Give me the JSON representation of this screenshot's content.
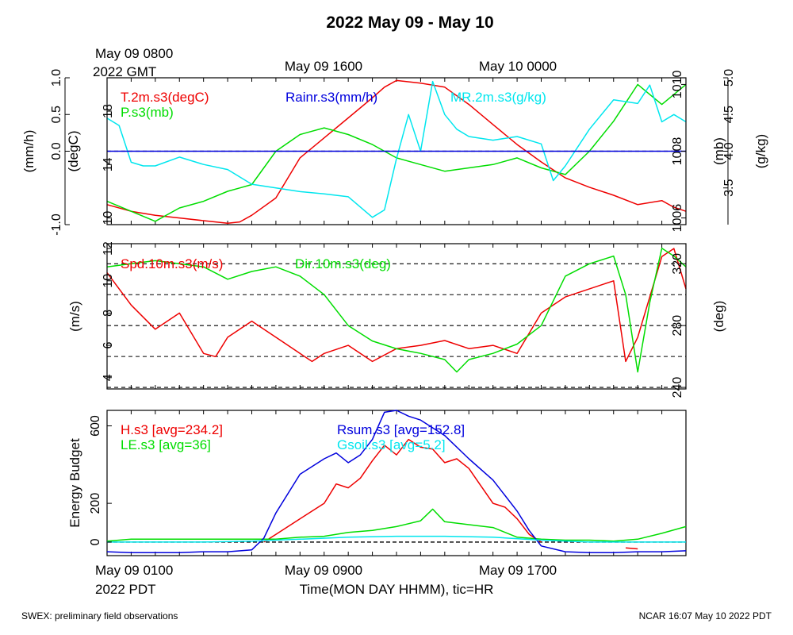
{
  "title": "2022 May 09 - May 10",
  "footer_left": "SWEX: preliminary field observations",
  "footer_right": "NCAR 16:07 May 10 2022 PDT",
  "top_time": {
    "first_line1": "May 09 0800",
    "first_line2": "2022 GMT",
    "labels": [
      "May 09 1600",
      "May 10 0000"
    ]
  },
  "bottom_time": {
    "first_line1": "May 09 0100",
    "first_line2": "2022 PDT",
    "labels": [
      "May 09 0900",
      "May 09 1700"
    ],
    "xlabel": "Time(MON DAY HHMM), tic=HR"
  },
  "colors": {
    "red": "#ee0000",
    "green": "#00dd00",
    "blue": "#0000dd",
    "cyan": "#00e6ee",
    "black": "#000000"
  },
  "chart_data": [
    {
      "type": "line",
      "name": "panel-meteorology",
      "x_unit": "hours since May 09 0100 PDT",
      "xlim": [
        0,
        24
      ],
      "axes": {
        "rain": {
          "label": "(mm/h)",
          "ylim": [
            -1.0,
            1.0
          ],
          "ticks": [
            -1.0,
            0.0,
            0.5,
            1.0
          ],
          "tick_labels": [
            "-1.0",
            "0.0",
            "0.5",
            "1.0"
          ]
        },
        "temp": {
          "label": "(degC)",
          "ylim": [
            9.5,
            20.5
          ],
          "ticks": [
            10,
            14,
            18
          ],
          "tick_labels": [
            "10",
            "14",
            "18"
          ]
        },
        "pres": {
          "label": "(mb)",
          "ylim": [
            1005.8,
            1010.2
          ],
          "ticks": [
            1006,
            1008,
            1010
          ],
          "tick_labels": [
            "1006",
            "1008",
            "1010"
          ]
        },
        "mr": {
          "label": "(g/kg)",
          "ylim": [
            3.0,
            5.0
          ],
          "ticks": [
            3.5,
            4.0,
            4.5,
            5.0
          ],
          "tick_labels": [
            "3.5",
            "4.0",
            "4.5",
            "5.0"
          ]
        }
      },
      "series": [
        {
          "name": "T.2m.s3(degC)",
          "axis": "temp",
          "color": "#ee0000",
          "x": [
            0,
            1,
            2,
            3,
            4,
            5,
            5.5,
            6,
            7,
            7.5,
            8,
            9,
            10,
            11,
            11.5,
            12,
            13,
            14,
            15,
            16,
            17,
            18,
            19,
            20,
            21,
            22,
            23,
            23.5,
            24
          ],
          "y": [
            11.0,
            10.5,
            10.2,
            10.0,
            9.8,
            9.6,
            9.7,
            10.2,
            11.5,
            13.0,
            14.5,
            16.0,
            17.5,
            19.0,
            19.8,
            20.3,
            20.1,
            19.8,
            18.5,
            17.0,
            15.5,
            14.2,
            13.0,
            12.3,
            11.7,
            11.0,
            11.3,
            10.8,
            10.5
          ]
        },
        {
          "name": "P.s3(mb)",
          "axis": "pres",
          "color": "#00dd00",
          "x": [
            0,
            1,
            2,
            3,
            4,
            5,
            5.5,
            6,
            7,
            8,
            8.5,
            9,
            10,
            11,
            12,
            13,
            14,
            15,
            16,
            17,
            18,
            19,
            20,
            21,
            22,
            23,
            24
          ],
          "y": [
            1006.5,
            1006.2,
            1005.9,
            1006.3,
            1006.5,
            1006.8,
            1006.9,
            1007.0,
            1008.0,
            1008.5,
            1008.6,
            1008.7,
            1008.5,
            1008.2,
            1007.8,
            1007.6,
            1007.4,
            1007.5,
            1007.6,
            1007.8,
            1007.5,
            1007.3,
            1008.0,
            1008.9,
            1010.0,
            1009.4,
            1010.0
          ]
        },
        {
          "name": "MR.2m.s3(g/kg)",
          "axis": "mr",
          "color": "#00e6ee",
          "x": [
            0,
            0.5,
            1,
            1.5,
            2,
            3,
            4,
            5,
            6,
            7,
            8,
            9,
            10,
            11,
            11.5,
            12,
            12.5,
            13,
            13.5,
            14,
            14.5,
            15,
            16,
            17,
            18,
            18.5,
            19,
            20,
            21,
            22,
            22.5,
            23,
            23.5,
            24
          ],
          "y": [
            4.45,
            4.35,
            3.85,
            3.8,
            3.8,
            3.92,
            3.82,
            3.75,
            3.55,
            3.5,
            3.45,
            3.42,
            3.38,
            3.1,
            3.2,
            3.9,
            4.5,
            4.0,
            4.95,
            4.5,
            4.3,
            4.2,
            4.15,
            4.2,
            4.1,
            3.6,
            3.8,
            4.3,
            4.7,
            4.65,
            4.9,
            4.4,
            4.5,
            4.4
          ]
        },
        {
          "name": "Rainr.s3(mm/h)",
          "axis": "rain",
          "color": "#0000dd",
          "x": [
            0,
            24
          ],
          "y": [
            0,
            0
          ]
        }
      ],
      "legend": [
        {
          "text": "T.2m.s3(degC)",
          "color": "#ee0000"
        },
        {
          "text": "P.s3(mb)",
          "color": "#00dd00"
        },
        {
          "text": "Rainr.s3(mm/h)",
          "color": "#0000dd"
        },
        {
          "text": "MR.2m.s3(g/kg)",
          "color": "#00e6ee"
        }
      ]
    },
    {
      "type": "line",
      "name": "panel-wind",
      "x_unit": "hours since May 09 0100 PDT",
      "xlim": [
        0,
        24
      ],
      "axes": {
        "spd": {
          "label": "(m/s)",
          "ylim": [
            3.3,
            12.3
          ],
          "ticks": [
            4,
            6,
            8,
            10,
            12
          ],
          "tick_labels": [
            "4",
            "6",
            "8",
            "10",
            "12"
          ]
        },
        "dir": {
          "label": "(deg)",
          "ylim": [
            239,
            333
          ],
          "ticks": [
            240,
            280,
            320
          ],
          "tick_labels": [
            "240",
            "280",
            "320"
          ]
        }
      },
      "reference_lines_dir": [
        240,
        260,
        280,
        300,
        320
      ],
      "series": [
        {
          "name": "Spd.10m.s3(m/s)",
          "axis": "spd",
          "color": "#ee0000",
          "x": [
            0,
            1,
            2,
            3,
            4,
            4.5,
            5,
            6,
            7,
            8,
            8.5,
            9,
            10,
            11,
            12,
            13,
            14,
            15,
            16,
            17,
            18,
            19,
            20,
            21,
            21.5,
            22,
            22.5,
            23,
            23.5,
            24
          ],
          "y": [
            10.5,
            8.5,
            7.0,
            8.0,
            5.5,
            5.3,
            6.5,
            7.5,
            6.5,
            5.5,
            5.0,
            5.5,
            6.0,
            5.0,
            5.8,
            6.0,
            6.3,
            5.8,
            6.0,
            5.5,
            8.0,
            9.0,
            9.5,
            10.0,
            5.0,
            6.5,
            9.0,
            11.5,
            12.0,
            9.5
          ]
        },
        {
          "name": "Dir.10m.s3(deg)",
          "axis": "dir",
          "color": "#00dd00",
          "x": [
            0,
            1,
            2,
            3,
            4,
            5,
            6,
            7,
            8,
            9,
            10,
            11,
            12,
            13,
            14,
            14.5,
            15,
            16,
            17,
            18,
            19,
            20,
            21,
            21.5,
            22,
            22.5,
            23,
            23.5,
            24
          ],
          "y": [
            318,
            320,
            322,
            320,
            318,
            310,
            315,
            318,
            312,
            300,
            280,
            270,
            265,
            262,
            258,
            250,
            258,
            262,
            268,
            280,
            312,
            320,
            325,
            300,
            250,
            295,
            330,
            325,
            318
          ]
        }
      ],
      "legend": [
        {
          "text": "Spd.10m.s3(m/s)",
          "color": "#ee0000"
        },
        {
          "text": "Dir.10m.s3(deg)",
          "color": "#00dd00"
        }
      ]
    },
    {
      "type": "line",
      "name": "panel-energy",
      "x_unit": "hours since May 09 0100 PDT",
      "xlim": [
        0,
        24
      ],
      "ylabel": "Energy Budget",
      "ylim": [
        -70,
        680
      ],
      "ticks": [
        0,
        200,
        600
      ],
      "tick_labels": [
        "0",
        "200",
        "600"
      ],
      "reference_line": 0,
      "series": [
        {
          "name": "H.s3",
          "avg": "234.2",
          "color": "#ee0000",
          "x": [
            6.5,
            7,
            8,
            9,
            9.5,
            10,
            10.5,
            11,
            11.5,
            12,
            12.5,
            13,
            13.5,
            14,
            14.5,
            15,
            15.5,
            16,
            16.5,
            17,
            17.5,
            18
          ],
          "y": [
            0,
            40,
            120,
            200,
            300,
            280,
            330,
            420,
            500,
            450,
            530,
            490,
            480,
            410,
            430,
            380,
            290,
            200,
            180,
            120,
            40,
            0
          ],
          "extra_x": [
            21.5,
            22
          ],
          "extra_y": [
            -30,
            -35
          ]
        },
        {
          "name": "LE.s3",
          "avg": "36",
          "color": "#00dd00",
          "x": [
            0,
            1,
            2,
            3,
            4,
            5,
            6,
            7,
            8,
            9,
            10,
            11,
            12,
            13,
            13.5,
            14,
            15,
            16,
            17,
            18,
            19,
            20,
            21,
            22,
            23,
            24
          ],
          "y": [
            5,
            15,
            15,
            15,
            15,
            15,
            15,
            15,
            25,
            30,
            50,
            60,
            80,
            110,
            170,
            105,
            90,
            75,
            25,
            15,
            10,
            10,
            5,
            15,
            45,
            80
          ]
        },
        {
          "name": "Rsum.s3",
          "avg": "152.8",
          "color": "#0000dd",
          "x": [
            0,
            1,
            2,
            3,
            4,
            5,
            6,
            6.5,
            7,
            8,
            9,
            9.5,
            10,
            10.5,
            11,
            11.5,
            12,
            12.5,
            13,
            14,
            15,
            16,
            17,
            17.5,
            18,
            19,
            20,
            21,
            22,
            23,
            24
          ],
          "y": [
            -50,
            -55,
            -55,
            -55,
            -50,
            -50,
            -40,
            20,
            150,
            350,
            430,
            460,
            410,
            450,
            530,
            670,
            680,
            650,
            630,
            550,
            430,
            320,
            160,
            60,
            -20,
            -50,
            -55,
            -55,
            -50,
            -50,
            -45
          ]
        },
        {
          "name": "Gsoil.s3",
          "avg": "5.2",
          "color": "#00e6ee",
          "x": [
            0,
            2,
            4,
            6,
            8,
            10,
            12,
            14,
            16,
            18,
            20,
            22,
            24
          ],
          "y": [
            0,
            0,
            0,
            5,
            15,
            25,
            30,
            30,
            25,
            10,
            0,
            0,
            0
          ]
        }
      ],
      "legend": [
        {
          "text": "H.s3 [avg=234.2]",
          "color": "#ee0000"
        },
        {
          "text": "LE.s3 [avg=36]",
          "color": "#00dd00"
        },
        {
          "text": "Rsum.s3 [avg=152.8]",
          "color": "#0000dd"
        },
        {
          "text": "Gsoil.s3 [avg=5.2]",
          "color": "#00e6ee"
        }
      ]
    }
  ]
}
